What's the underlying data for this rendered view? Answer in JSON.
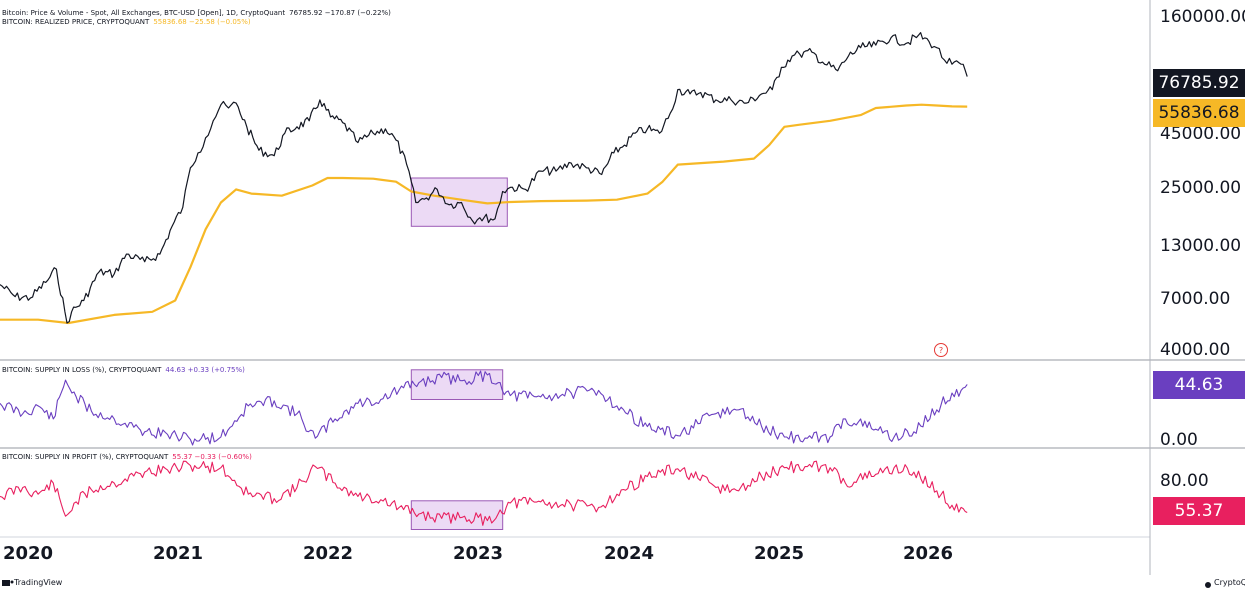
{
  "legends": {
    "price": {
      "text": "Bitcoin: Price & Volume - Spot, All Exchanges, BTC-USD [Open], 1D, CryptoQuant",
      "value": "76785.92  −170.87 (−0.22%)"
    },
    "realized": {
      "text": "BITCOIN: REALIZED PRICE, CRYPTOQUANT",
      "value": "55836.68  −25.58 (−0.05%)"
    },
    "loss": {
      "text": "BITCOIN: SUPPLY IN LOSS (%), CRYPTOQUANT",
      "value": "44.63  +0.33 (+0.75%)"
    },
    "profit": {
      "text": "BITCOIN: SUPPLY IN PROFIT (%), CRYPTOQUANT",
      "value": "55.37  −0.33 (−0.60%)"
    }
  },
  "badges": {
    "price": "76785.92",
    "realized": "55836.68",
    "loss": "44.63",
    "profit": "55.37"
  },
  "colors": {
    "price": "#131722",
    "realized": "#f6b826",
    "loss": "#6a3fc0",
    "profit": "#e8205f",
    "highlight_fill": "#e7d1f2",
    "highlight_stroke": "#9b59b6"
  },
  "chart_data": [
    {
      "type": "line",
      "title": "Bitcoin: Price & Volume - Spot, All Exchanges, BTC-USD [Open], 1D, CryptoQuant",
      "scale": "log",
      "ylim": [
        3700,
        175000
      ],
      "yticks": [
        "160000.00",
        "45000.00",
        "25000.00",
        "13000.00",
        "7000.00",
        "4000.00"
      ],
      "x_range": [
        2019.75,
        2027.3
      ],
      "highlight": {
        "x": [
          2022.45,
          2023.08
        ],
        "y": [
          15500,
          26000
        ]
      },
      "series": [
        {
          "name": "Price",
          "x": [
            2019.75,
            2019.85,
            2019.95,
            2020.05,
            2020.12,
            2020.19,
            2020.22,
            2020.3,
            2020.4,
            2020.5,
            2020.58,
            2020.7,
            2020.8,
            2020.88,
            2020.95,
            2021.0,
            2021.05,
            2021.1,
            2021.15,
            2021.2,
            2021.25,
            2021.3,
            2021.37,
            2021.45,
            2021.55,
            2021.62,
            2021.7,
            2021.78,
            2021.85,
            2021.92,
            2022.0,
            2022.1,
            2022.2,
            2022.28,
            2022.35,
            2022.42,
            2022.48,
            2022.55,
            2022.62,
            2022.7,
            2022.78,
            2022.85,
            2022.9,
            2023.0,
            2023.05,
            2023.1,
            2023.2,
            2023.3,
            2023.4,
            2023.5,
            2023.6,
            2023.7,
            2023.78,
            2023.85,
            2023.92,
            2024.0,
            2024.08,
            2024.15,
            2024.2,
            2024.28,
            2024.35,
            2024.45,
            2024.55,
            2024.65,
            2024.75,
            2024.82,
            2024.88,
            2024.95,
            2025.0,
            2025.08,
            2025.15,
            2025.25,
            2025.32,
            2025.4,
            2025.5,
            2025.6,
            2025.7,
            2025.78,
            2025.85,
            2025.9,
            2025.95,
            2026.0,
            2026.06,
            2026.1
          ],
          "y": [
            8300,
            7300,
            7200,
            8500,
            9800,
            5500,
            6200,
            7000,
            9500,
            9300,
            11500,
            10600,
            11500,
            15500,
            19000,
            29000,
            34000,
            40000,
            48000,
            57000,
            55000,
            58000,
            45000,
            35000,
            33000,
            42000,
            45000,
            48000,
            60000,
            50000,
            47000,
            38000,
            42000,
            44000,
            39000,
            30000,
            20000,
            21000,
            23000,
            19500,
            20000,
            16500,
            17000,
            16800,
            22500,
            23500,
            23000,
            28000,
            28000,
            30500,
            29000,
            27000,
            34000,
            37000,
            42000,
            44000,
            42000,
            52000,
            67000,
            64000,
            65000,
            60000,
            60000,
            58000,
            64000,
            67000,
            85000,
            96000,
            98000,
            100000,
            90000,
            82000,
            96000,
            105000,
            108000,
            117000,
            110000,
            120000,
            112000,
            105000,
            92000,
            88000,
            88000,
            77000
          ]
        },
        {
          "name": "Realized Price",
          "x": [
            2019.75,
            2020.0,
            2020.2,
            2020.5,
            2020.75,
            2020.9,
            2021.0,
            2021.1,
            2021.2,
            2021.3,
            2021.4,
            2021.6,
            2021.8,
            2021.9,
            2022.0,
            2022.2,
            2022.35,
            2022.45,
            2022.6,
            2022.8,
            2022.95,
            2023.1,
            2023.3,
            2023.6,
            2023.8,
            2024.0,
            2024.1,
            2024.2,
            2024.5,
            2024.7,
            2024.8,
            2024.9,
            2025.0,
            2025.2,
            2025.4,
            2025.5,
            2025.7,
            2025.8,
            2025.9,
            2026.0,
            2026.1
          ],
          "y": [
            5700,
            5700,
            5500,
            6000,
            6200,
            7000,
            10000,
            15000,
            20000,
            23000,
            22000,
            21500,
            24000,
            26000,
            26000,
            25800,
            25000,
            22500,
            21500,
            20500,
            19800,
            20100,
            20300,
            20400,
            20600,
            22000,
            25000,
            30000,
            31000,
            32000,
            37000,
            45000,
            46000,
            48000,
            51000,
            55000,
            56500,
            57000,
            56500,
            56000,
            55837
          ]
        }
      ]
    },
    {
      "type": "line",
      "title": "BITCOIN: SUPPLY IN LOSS (%), CRYPTOQUANT",
      "ylim": [
        -3,
        62
      ],
      "yticks": [
        "0.00"
      ],
      "highlight": {
        "x": [
          2022.45,
          2023.05
        ],
        "y": [
          33,
          56
        ]
      },
      "series": [
        {
          "name": "Supply in Loss (%)",
          "x": [
            2019.75,
            2019.9,
            2020.0,
            2020.1,
            2020.18,
            2020.25,
            2020.35,
            2020.5,
            2020.7,
            2020.85,
            2021.0,
            2021.2,
            2021.38,
            2021.55,
            2021.7,
            2021.82,
            2021.95,
            2022.1,
            2022.25,
            2022.4,
            2022.5,
            2022.65,
            2022.8,
            2022.95,
            2023.02,
            2023.1,
            2023.3,
            2023.5,
            2023.68,
            2023.8,
            2024.0,
            2024.2,
            2024.45,
            2024.6,
            2024.75,
            2024.9,
            2025.05,
            2025.2,
            2025.3,
            2025.5,
            2025.62,
            2025.75,
            2025.9,
            2026.0,
            2026.06,
            2026.1
          ],
          "y": [
            30,
            22,
            28,
            18,
            48,
            35,
            24,
            18,
            8,
            6,
            2,
            4,
            28,
            32,
            22,
            3,
            18,
            30,
            33,
            42,
            46,
            50,
            48,
            52,
            46,
            36,
            35,
            38,
            40,
            28,
            12,
            5,
            22,
            25,
            12,
            4,
            3,
            4,
            18,
            10,
            4,
            8,
            25,
            38,
            40,
            44.63
          ]
        }
      ]
    },
    {
      "type": "line",
      "title": "BITCOIN: SUPPLY IN PROFIT (%), CRYPTOQUANT",
      "ylim": [
        35,
        112
      ],
      "yticks": [
        "80.00"
      ],
      "highlight": {
        "x": [
          2022.45,
          2023.05
        ],
        "y": [
          40,
          66
        ]
      },
      "series": [
        {
          "name": "Supply in Profit (%)",
          "x": [
            2019.75,
            2019.9,
            2020.0,
            2020.1,
            2020.18,
            2020.25,
            2020.35,
            2020.5,
            2020.7,
            2020.85,
            2021.0,
            2021.2,
            2021.38,
            2021.55,
            2021.7,
            2021.82,
            2021.95,
            2022.1,
            2022.25,
            2022.4,
            2022.5,
            2022.65,
            2022.8,
            2022.95,
            2023.02,
            2023.1,
            2023.3,
            2023.5,
            2023.68,
            2023.8,
            2024.0,
            2024.2,
            2024.45,
            2024.6,
            2024.75,
            2024.9,
            2025.05,
            2025.2,
            2025.3,
            2025.5,
            2025.62,
            2025.75,
            2025.9,
            2026.0,
            2026.06,
            2026.1
          ],
          "y": [
            70,
            78,
            72,
            82,
            52,
            65,
            76,
            82,
            92,
            94,
            98,
            96,
            72,
            68,
            78,
            97,
            82,
            70,
            67,
            58,
            54,
            50,
            52,
            48,
            54,
            64,
            65,
            62,
            60,
            72,
            88,
            95,
            78,
            75,
            88,
            96,
            97,
            96,
            82,
            90,
            96,
            92,
            75,
            62,
            60,
            55.37
          ]
        }
      ]
    }
  ],
  "x_axis": {
    "ticks": [
      "2020",
      "2021",
      "2022",
      "2023",
      "2024",
      "2025",
      "2026"
    ]
  },
  "footer": {
    "left": "TradingView",
    "right": "CryptoQ"
  },
  "marker": {
    "label": "?"
  }
}
